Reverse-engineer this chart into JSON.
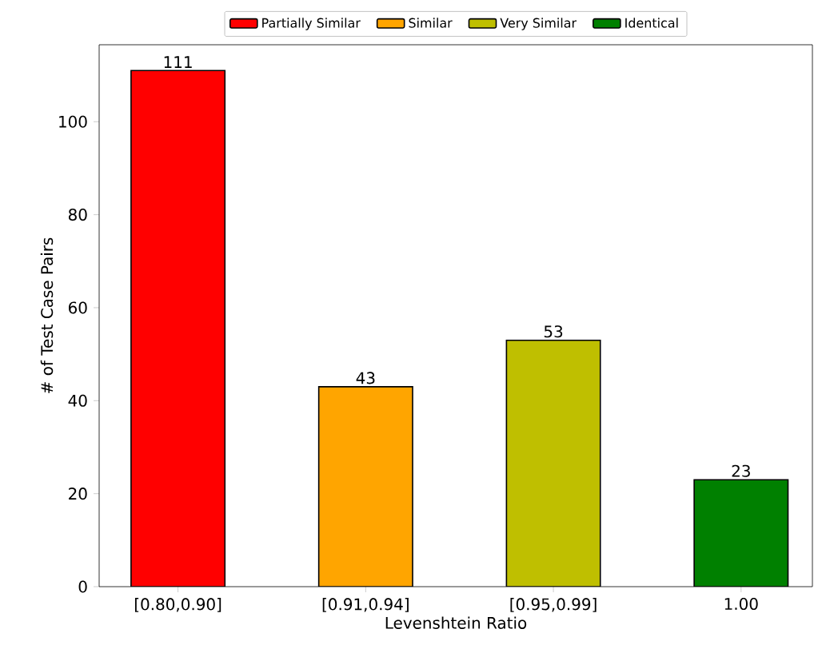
{
  "chart_data": {
    "type": "bar",
    "xlabel": "Levenshtein Ratio",
    "ylabel": "# of Test Case Pairs",
    "categories": [
      "[0.80,0.90]",
      "[0.91,0.94]",
      "[0.95,0.99]",
      "1.00"
    ],
    "series": [
      {
        "name": "Partially Similar",
        "color": "#ff0000",
        "values": [
          111,
          null,
          null,
          null
        ]
      },
      {
        "name": "Similar",
        "color": "#ffa500",
        "values": [
          null,
          43,
          null,
          null
        ]
      },
      {
        "name": "Very Similar",
        "color": "#bfbf00",
        "values": [
          null,
          null,
          53,
          null
        ]
      },
      {
        "name": "Identical",
        "color": "#008000",
        "values": [
          null,
          null,
          null,
          23
        ]
      }
    ],
    "ylim": [
      0,
      116.55
    ],
    "yticks": [
      0,
      20,
      40,
      60,
      80,
      100
    ],
    "data_labels": true,
    "grid": false,
    "legend": "top"
  }
}
